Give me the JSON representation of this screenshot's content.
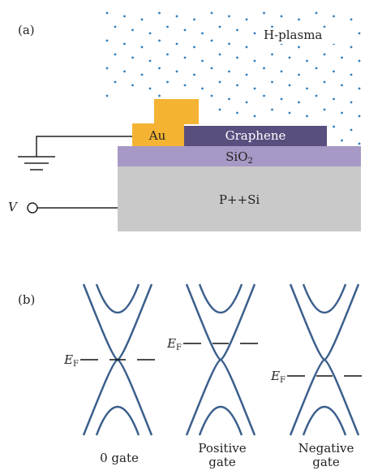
{
  "panel_a": {
    "label": "(a)",
    "plasma": "H-plasma",
    "layers": {
      "au": "Au",
      "graphene": "Graphene",
      "oxide": {
        "base": "SiO",
        "sub": "2"
      },
      "substrate": "P++Si"
    },
    "voltage": "V"
  },
  "panel_b": {
    "label": "(b)",
    "cases": [
      {
        "fermi": {
          "base": "E",
          "sub": "F"
        },
        "label": [
          "0 gate"
        ]
      },
      {
        "fermi": {
          "base": "E",
          "sub": "F"
        },
        "label": [
          "Positive",
          "gate"
        ]
      },
      {
        "fermi": {
          "base": "E",
          "sub": "F"
        },
        "label": [
          "Negative",
          "gate"
        ]
      }
    ]
  }
}
